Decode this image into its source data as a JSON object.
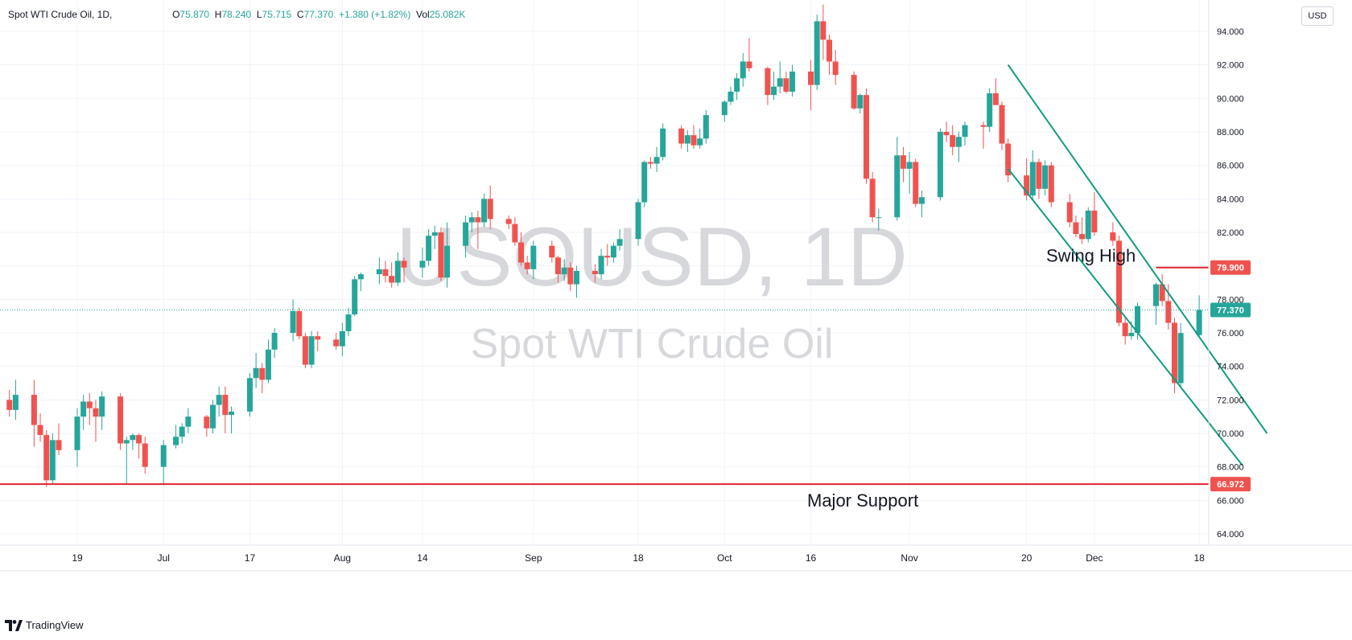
{
  "legend": {
    "symbol": "Spot WTI Crude Oil, 1D,",
    "open_label": "O",
    "open_value": "75.870",
    "high_label": "H",
    "high_value": "78.240",
    "low_label": "L",
    "low_value": "75.715",
    "close_label": "C",
    "close_value": "77.370",
    "change": "+1.380 (+1.82%)",
    "vol_label": "Vol",
    "vol_value": "25.082K"
  },
  "currency_button": "USD",
  "footer": {
    "brand": "TradingView"
  },
  "colors": {
    "up": "#26a69a",
    "down": "#ef5350",
    "channel": "#119b80",
    "support_line": "#e0242f",
    "grid": "#f0f3fa",
    "watermark": "#d7d8db"
  },
  "chart_data": {
    "type": "candlestick",
    "watermark": {
      "symbol": "USOUSD, 1D",
      "description": "Spot WTI Crude Oil"
    },
    "y_ticks": [
      "94.000",
      "92.000",
      "90.000",
      "88.000",
      "86.000",
      "84.000",
      "82.000",
      "80.000",
      "78.000",
      "76.000",
      "74.000",
      "72.000",
      "70.000",
      "68.000",
      "66.000",
      "64.000"
    ],
    "ylim": [
      63.0,
      95.5
    ],
    "x_ticks": [
      {
        "label": "19",
        "date": "2023-06-19"
      },
      {
        "label": "Jul",
        "date": "2023-07-03"
      },
      {
        "label": "17",
        "date": "2023-07-17"
      },
      {
        "label": "Aug",
        "date": "2023-08-01"
      },
      {
        "label": "14",
        "date": "2023-08-14"
      },
      {
        "label": "Sep",
        "date": "2023-09-01"
      },
      {
        "label": "18",
        "date": "2023-09-18"
      },
      {
        "label": "Oct",
        "date": "2023-10-02"
      },
      {
        "label": "16",
        "date": "2023-10-16"
      },
      {
        "label": "Nov",
        "date": "2023-11-01"
      },
      {
        "label": "20",
        "date": "2023-11-20"
      },
      {
        "label": "Dec",
        "date": "2023-12-01"
      },
      {
        "label": "18",
        "date": "2023-12-18"
      }
    ],
    "candles": [
      {
        "d": "2023-06-08",
        "o": 72.0,
        "h": 72.6,
        "l": 71.0,
        "c": 71.4
      },
      {
        "d": "2023-06-09",
        "o": 71.4,
        "h": 73.2,
        "l": 70.8,
        "c": 72.3
      },
      {
        "d": "2023-06-12",
        "o": 72.3,
        "h": 73.2,
        "l": 69.2,
        "c": 70.5
      },
      {
        "d": "2023-06-13",
        "o": 70.5,
        "h": 71.2,
        "l": 69.5,
        "c": 69.9
      },
      {
        "d": "2023-06-14",
        "o": 69.9,
        "h": 70.2,
        "l": 66.8,
        "c": 67.2
      },
      {
        "d": "2023-06-15",
        "o": 67.2,
        "h": 70.0,
        "l": 67.0,
        "c": 69.6
      },
      {
        "d": "2023-06-16",
        "o": 69.6,
        "h": 70.6,
        "l": 68.7,
        "c": 69.0
      },
      {
        "d": "2023-06-19",
        "o": 69.0,
        "h": 71.5,
        "l": 68.0,
        "c": 71.0
      },
      {
        "d": "2023-06-20",
        "o": 71.0,
        "h": 72.3,
        "l": 70.2,
        "c": 71.9
      },
      {
        "d": "2023-06-21",
        "o": 71.9,
        "h": 72.4,
        "l": 70.5,
        "c": 71.5
      },
      {
        "d": "2023-06-22",
        "o": 71.5,
        "h": 72.0,
        "l": 69.5,
        "c": 71.0
      },
      {
        "d": "2023-06-23",
        "o": 71.0,
        "h": 72.5,
        "l": 70.2,
        "c": 72.2
      },
      {
        "d": "2023-06-26",
        "o": 72.2,
        "h": 72.4,
        "l": 69.0,
        "c": 69.4
      },
      {
        "d": "2023-06-27",
        "o": 69.4,
        "h": 69.8,
        "l": 67.0,
        "c": 69.6
      },
      {
        "d": "2023-06-28",
        "o": 69.6,
        "h": 70.0,
        "l": 69.0,
        "c": 69.9
      },
      {
        "d": "2023-06-29",
        "o": 69.9,
        "h": 70.0,
        "l": 68.5,
        "c": 69.4
      },
      {
        "d": "2023-06-30",
        "o": 69.4,
        "h": 69.8,
        "l": 67.6,
        "c": 68.0
      },
      {
        "d": "2023-07-03",
        "o": 68.0,
        "h": 69.6,
        "l": 66.9,
        "c": 69.3
      },
      {
        "d": "2023-07-05",
        "o": 69.3,
        "h": 70.5,
        "l": 69.1,
        "c": 69.8
      },
      {
        "d": "2023-07-06",
        "o": 69.8,
        "h": 70.6,
        "l": 69.4,
        "c": 70.4
      },
      {
        "d": "2023-07-07",
        "o": 70.4,
        "h": 71.5,
        "l": 70.0,
        "c": 71.0
      },
      {
        "d": "2023-07-10",
        "o": 71.0,
        "h": 71.1,
        "l": 69.8,
        "c": 70.3
      },
      {
        "d": "2023-07-11",
        "o": 70.3,
        "h": 72.0,
        "l": 70.0,
        "c": 71.7
      },
      {
        "d": "2023-07-12",
        "o": 71.7,
        "h": 72.8,
        "l": 71.0,
        "c": 72.3
      },
      {
        "d": "2023-07-13",
        "o": 72.3,
        "h": 72.8,
        "l": 70.0,
        "c": 71.1
      },
      {
        "d": "2023-07-14",
        "o": 71.1,
        "h": 71.6,
        "l": 70.0,
        "c": 71.3
      },
      {
        "d": "2023-07-17",
        "o": 71.3,
        "h": 73.6,
        "l": 71.0,
        "c": 73.3
      },
      {
        "d": "2023-07-18",
        "o": 73.3,
        "h": 74.8,
        "l": 72.7,
        "c": 73.9
      },
      {
        "d": "2023-07-19",
        "o": 73.9,
        "h": 74.2,
        "l": 72.4,
        "c": 73.2
      },
      {
        "d": "2023-07-20",
        "o": 73.2,
        "h": 75.6,
        "l": 73.0,
        "c": 75.0
      },
      {
        "d": "2023-07-21",
        "o": 75.0,
        "h": 76.3,
        "l": 74.5,
        "c": 76.0
      },
      {
        "d": "2023-07-24",
        "o": 76.0,
        "h": 78.0,
        "l": 75.5,
        "c": 77.3
      },
      {
        "d": "2023-07-25",
        "o": 77.3,
        "h": 77.5,
        "l": 75.6,
        "c": 75.8
      },
      {
        "d": "2023-07-26",
        "o": 75.8,
        "h": 76.0,
        "l": 73.9,
        "c": 74.1
      },
      {
        "d": "2023-07-27",
        "o": 74.1,
        "h": 76.1,
        "l": 73.9,
        "c": 75.8
      },
      {
        "d": "2023-07-28",
        "o": 75.8,
        "h": 76.1,
        "l": 74.9,
        "c": 75.6
      },
      {
        "d": "2023-07-31",
        "o": 75.6,
        "h": 76.0,
        "l": 75.0,
        "c": 75.2
      },
      {
        "d": "2023-08-01",
        "o": 75.2,
        "h": 76.6,
        "l": 74.6,
        "c": 76.1
      },
      {
        "d": "2023-08-02",
        "o": 76.1,
        "h": 77.5,
        "l": 75.8,
        "c": 77.1
      },
      {
        "d": "2023-08-03",
        "o": 77.1,
        "h": 79.4,
        "l": 77.0,
        "c": 79.2
      },
      {
        "d": "2023-08-04",
        "o": 79.2,
        "h": 79.6,
        "l": 78.5,
        "c": 79.5
      },
      {
        "d": "2023-08-07",
        "o": 79.5,
        "h": 80.5,
        "l": 78.9,
        "c": 79.8
      },
      {
        "d": "2023-08-08",
        "o": 79.8,
        "h": 80.3,
        "l": 79.0,
        "c": 79.4
      },
      {
        "d": "2023-08-09",
        "o": 79.4,
        "h": 80.2,
        "l": 78.7,
        "c": 79.0
      },
      {
        "d": "2023-08-10",
        "o": 79.0,
        "h": 80.8,
        "l": 78.8,
        "c": 80.3
      },
      {
        "d": "2023-08-11",
        "o": 80.3,
        "h": 80.5,
        "l": 79.0,
        "c": 79.9
      },
      {
        "d": "2023-08-14",
        "o": 79.9,
        "h": 81.1,
        "l": 79.3,
        "c": 80.3
      },
      {
        "d": "2023-08-15",
        "o": 80.3,
        "h": 82.2,
        "l": 80.0,
        "c": 81.8
      },
      {
        "d": "2023-08-16",
        "o": 81.8,
        "h": 82.4,
        "l": 81.0,
        "c": 82.0
      },
      {
        "d": "2023-08-17",
        "o": 82.0,
        "h": 82.3,
        "l": 79.1,
        "c": 79.3
      },
      {
        "d": "2023-08-18",
        "o": 79.3,
        "h": 82.6,
        "l": 78.7,
        "c": 81.2
      },
      {
        "d": "2023-08-21",
        "o": 81.2,
        "h": 83.0,
        "l": 80.5,
        "c": 82.6
      },
      {
        "d": "2023-08-22",
        "o": 82.6,
        "h": 83.2,
        "l": 82.0,
        "c": 82.9
      },
      {
        "d": "2023-08-23",
        "o": 82.9,
        "h": 83.3,
        "l": 81.0,
        "c": 82.6
      },
      {
        "d": "2023-08-24",
        "o": 82.6,
        "h": 84.3,
        "l": 82.3,
        "c": 84.0
      },
      {
        "d": "2023-08-25",
        "o": 84.0,
        "h": 84.8,
        "l": 82.2,
        "c": 82.8
      },
      {
        "d": "2023-08-28",
        "o": 82.8,
        "h": 83.0,
        "l": 82.2,
        "c": 82.5
      },
      {
        "d": "2023-08-29",
        "o": 82.5,
        "h": 82.9,
        "l": 81.2,
        "c": 81.4
      },
      {
        "d": "2023-08-30",
        "o": 81.4,
        "h": 82.0,
        "l": 80.0,
        "c": 80.2
      },
      {
        "d": "2023-08-31",
        "o": 80.2,
        "h": 80.6,
        "l": 79.5,
        "c": 79.8
      },
      {
        "d": "2023-09-01",
        "o": 79.8,
        "h": 81.5,
        "l": 79.2,
        "c": 81.2
      },
      {
        "d": "2023-09-04",
        "o": 81.2,
        "h": 81.5,
        "l": 80.2,
        "c": 80.5
      },
      {
        "d": "2023-09-05",
        "o": 80.5,
        "h": 80.6,
        "l": 79.0,
        "c": 79.5
      },
      {
        "d": "2023-09-06",
        "o": 79.5,
        "h": 80.4,
        "l": 79.1,
        "c": 79.9
      },
      {
        "d": "2023-09-07",
        "o": 79.9,
        "h": 80.2,
        "l": 78.5,
        "c": 78.9
      },
      {
        "d": "2023-09-08",
        "o": 78.9,
        "h": 80.0,
        "l": 78.1,
        "c": 79.7
      },
      {
        "d": "2023-09-11",
        "o": 79.7,
        "h": 80.1,
        "l": 79.0,
        "c": 79.5
      },
      {
        "d": "2023-09-12",
        "o": 79.5,
        "h": 81.0,
        "l": 79.2,
        "c": 80.6
      },
      {
        "d": "2023-09-13",
        "o": 80.6,
        "h": 81.3,
        "l": 80.0,
        "c": 80.5
      },
      {
        "d": "2023-09-14",
        "o": 80.5,
        "h": 81.4,
        "l": 80.2,
        "c": 81.2
      },
      {
        "d": "2023-09-15",
        "o": 81.2,
        "h": 82.2,
        "l": 80.9,
        "c": 81.6
      },
      {
        "d": "2023-09-18",
        "o": 81.6,
        "h": 84.0,
        "l": 81.2,
        "c": 83.8
      },
      {
        "d": "2023-09-19",
        "o": 83.8,
        "h": 86.3,
        "l": 83.5,
        "c": 86.2
      },
      {
        "d": "2023-09-20",
        "o": 86.2,
        "h": 86.5,
        "l": 85.8,
        "c": 86.1
      },
      {
        "d": "2023-09-21",
        "o": 86.1,
        "h": 87.1,
        "l": 85.6,
        "c": 86.5
      },
      {
        "d": "2023-09-22",
        "o": 86.5,
        "h": 88.5,
        "l": 86.3,
        "c": 88.2
      },
      {
        "d": "2023-09-25",
        "o": 88.2,
        "h": 88.4,
        "l": 87.0,
        "c": 87.3
      },
      {
        "d": "2023-09-26",
        "o": 87.3,
        "h": 88.1,
        "l": 86.8,
        "c": 87.8
      },
      {
        "d": "2023-09-27",
        "o": 87.8,
        "h": 88.4,
        "l": 87.0,
        "c": 87.2
      },
      {
        "d": "2023-09-28",
        "o": 87.2,
        "h": 88.2,
        "l": 87.0,
        "c": 87.6
      },
      {
        "d": "2023-09-29",
        "o": 87.6,
        "h": 89.3,
        "l": 87.3,
        "c": 89.0
      },
      {
        "d": "2023-10-02",
        "o": 89.0,
        "h": 89.9,
        "l": 88.6,
        "c": 89.8
      },
      {
        "d": "2023-10-03",
        "o": 89.8,
        "h": 90.7,
        "l": 89.6,
        "c": 90.4
      },
      {
        "d": "2023-10-04",
        "o": 90.4,
        "h": 91.5,
        "l": 89.9,
        "c": 91.2
      },
      {
        "d": "2023-10-05",
        "o": 91.2,
        "h": 92.7,
        "l": 90.7,
        "c": 92.2
      },
      {
        "d": "2023-10-06",
        "o": 92.2,
        "h": 93.6,
        "l": 91.6,
        "c": 91.8
      },
      {
        "d": "2023-10-09",
        "o": 91.8,
        "h": 91.9,
        "l": 89.6,
        "c": 90.2
      },
      {
        "d": "2023-10-10",
        "o": 90.2,
        "h": 91.6,
        "l": 89.9,
        "c": 90.7
      },
      {
        "d": "2023-10-11",
        "o": 90.7,
        "h": 92.2,
        "l": 90.3,
        "c": 91.2
      },
      {
        "d": "2023-10-12",
        "o": 91.2,
        "h": 91.6,
        "l": 90.3,
        "c": 90.4
      },
      {
        "d": "2023-10-13",
        "o": 90.4,
        "h": 92.0,
        "l": 90.1,
        "c": 91.6
      },
      {
        "d": "2023-10-16",
        "o": 91.6,
        "h": 92.3,
        "l": 89.3,
        "c": 90.8
      },
      {
        "d": "2023-10-17",
        "o": 90.8,
        "h": 95.0,
        "l": 90.5,
        "c": 94.6
      },
      {
        "d": "2023-10-18",
        "o": 94.6,
        "h": 95.6,
        "l": 92.3,
        "c": 93.5
      },
      {
        "d": "2023-10-19",
        "o": 93.5,
        "h": 93.8,
        "l": 91.4,
        "c": 92.2
      },
      {
        "d": "2023-10-20",
        "o": 92.2,
        "h": 92.9,
        "l": 90.8,
        "c": 91.4
      },
      {
        "d": "2023-10-23",
        "o": 91.4,
        "h": 91.6,
        "l": 89.3,
        "c": 89.4
      },
      {
        "d": "2023-10-24",
        "o": 89.4,
        "h": 90.3,
        "l": 89.1,
        "c": 90.2
      },
      {
        "d": "2023-10-25",
        "o": 90.2,
        "h": 90.6,
        "l": 84.9,
        "c": 85.2
      },
      {
        "d": "2023-10-26",
        "o": 85.2,
        "h": 85.6,
        "l": 82.6,
        "c": 82.9
      },
      {
        "d": "2023-10-27",
        "o": 82.9,
        "h": 83.4,
        "l": 82.1,
        "c": 82.9
      },
      {
        "d": "2023-10-30",
        "o": 82.9,
        "h": 87.7,
        "l": 82.7,
        "c": 86.6
      },
      {
        "d": "2023-10-31",
        "o": 86.6,
        "h": 87.1,
        "l": 85.0,
        "c": 85.8
      },
      {
        "d": "2023-11-01",
        "o": 85.8,
        "h": 86.8,
        "l": 84.3,
        "c": 86.2
      },
      {
        "d": "2023-11-02",
        "o": 86.2,
        "h": 86.4,
        "l": 83.5,
        "c": 83.7
      },
      {
        "d": "2023-11-03",
        "o": 83.7,
        "h": 84.5,
        "l": 82.9,
        "c": 84.1
      },
      {
        "d": "2023-11-06",
        "o": 84.1,
        "h": 88.2,
        "l": 83.9,
        "c": 88.0
      },
      {
        "d": "2023-11-07",
        "o": 88.0,
        "h": 88.6,
        "l": 87.4,
        "c": 87.8
      },
      {
        "d": "2023-11-08",
        "o": 87.8,
        "h": 88.4,
        "l": 86.6,
        "c": 87.1
      },
      {
        "d": "2023-11-09",
        "o": 87.1,
        "h": 88.0,
        "l": 86.2,
        "c": 87.7
      },
      {
        "d": "2023-11-10",
        "o": 87.7,
        "h": 88.6,
        "l": 87.2,
        "c": 88.4
      },
      {
        "d": "2023-11-13",
        "o": 88.4,
        "h": 88.6,
        "l": 87.0,
        "c": 88.3
      },
      {
        "d": "2023-11-14",
        "o": 88.3,
        "h": 90.6,
        "l": 88.0,
        "c": 90.3
      },
      {
        "d": "2023-11-15",
        "o": 90.3,
        "h": 91.2,
        "l": 89.6,
        "c": 89.6
      },
      {
        "d": "2023-11-16",
        "o": 89.6,
        "h": 89.8,
        "l": 86.9,
        "c": 87.3
      },
      {
        "d": "2023-11-17",
        "o": 87.3,
        "h": 87.6,
        "l": 85.0,
        "c": 85.4
      },
      {
        "d": "2023-11-20",
        "o": 85.4,
        "h": 86.4,
        "l": 83.9,
        "c": 84.2
      },
      {
        "d": "2023-11-21",
        "o": 84.2,
        "h": 86.9,
        "l": 83.9,
        "c": 86.2
      },
      {
        "d": "2023-11-22",
        "o": 86.2,
        "h": 86.4,
        "l": 84.0,
        "c": 84.6
      },
      {
        "d": "2023-11-23",
        "o": 84.6,
        "h": 86.3,
        "l": 84.2,
        "c": 86.0
      },
      {
        "d": "2023-11-24",
        "o": 86.0,
        "h": 86.2,
        "l": 83.5,
        "c": 83.8
      },
      {
        "d": "2023-11-27",
        "o": 83.8,
        "h": 84.3,
        "l": 82.3,
        "c": 82.6
      },
      {
        "d": "2023-11-28",
        "o": 82.6,
        "h": 83.0,
        "l": 81.7,
        "c": 81.9
      },
      {
        "d": "2023-11-29",
        "o": 81.9,
        "h": 82.9,
        "l": 81.3,
        "c": 81.6
      },
      {
        "d": "2023-11-30",
        "o": 81.6,
        "h": 83.5,
        "l": 81.4,
        "c": 83.3
      },
      {
        "d": "2023-12-01",
        "o": 83.3,
        "h": 84.4,
        "l": 81.8,
        "c": 82.0
      },
      {
        "d": "2023-12-04",
        "o": 82.0,
        "h": 82.6,
        "l": 81.2,
        "c": 81.5
      },
      {
        "d": "2023-12-05",
        "o": 81.5,
        "h": 81.8,
        "l": 76.4,
        "c": 76.6
      },
      {
        "d": "2023-12-06",
        "o": 76.6,
        "h": 76.9,
        "l": 75.3,
        "c": 75.8
      },
      {
        "d": "2023-12-07",
        "o": 75.8,
        "h": 76.7,
        "l": 75.6,
        "c": 76.0
      },
      {
        "d": "2023-12-08",
        "o": 76.0,
        "h": 77.8,
        "l": 75.6,
        "c": 77.6
      },
      {
        "d": "2023-12-11",
        "o": 77.6,
        "h": 79.0,
        "l": 76.5,
        "c": 78.9
      },
      {
        "d": "2023-12-12",
        "o": 78.9,
        "h": 79.5,
        "l": 77.6,
        "c": 77.9
      },
      {
        "d": "2023-12-13",
        "o": 77.9,
        "h": 78.9,
        "l": 76.2,
        "c": 76.6
      },
      {
        "d": "2023-12-14",
        "o": 76.6,
        "h": 76.9,
        "l": 72.4,
        "c": 73.0
      },
      {
        "d": "2023-12-15",
        "o": 73.0,
        "h": 76.6,
        "l": 72.8,
        "c": 75.99
      },
      {
        "d": "2023-12-18",
        "o": 75.87,
        "h": 78.24,
        "l": 75.715,
        "c": 77.37
      }
    ],
    "current_price": {
      "value": 77.37,
      "label": "77.370"
    },
    "horizontal_lines": [
      {
        "name": "swing-high",
        "value": 79.9,
        "label": "79.900",
        "text": "Swing High",
        "from_date": "2023-12-11"
      },
      {
        "name": "major-support",
        "value": 66.972,
        "label": "66.972",
        "text": "Major Support"
      }
    ],
    "channel_lines": [
      {
        "name": "channel-upper",
        "from": {
          "date": "2023-11-17",
          "price": 92.0
        },
        "to": {
          "date": "2023-12-29",
          "price": 70.0
        }
      },
      {
        "name": "channel-lower",
        "from": {
          "date": "2023-11-17",
          "price": 85.8
        },
        "to": {
          "date": "2023-12-25",
          "price": 68.1
        }
      }
    ]
  }
}
